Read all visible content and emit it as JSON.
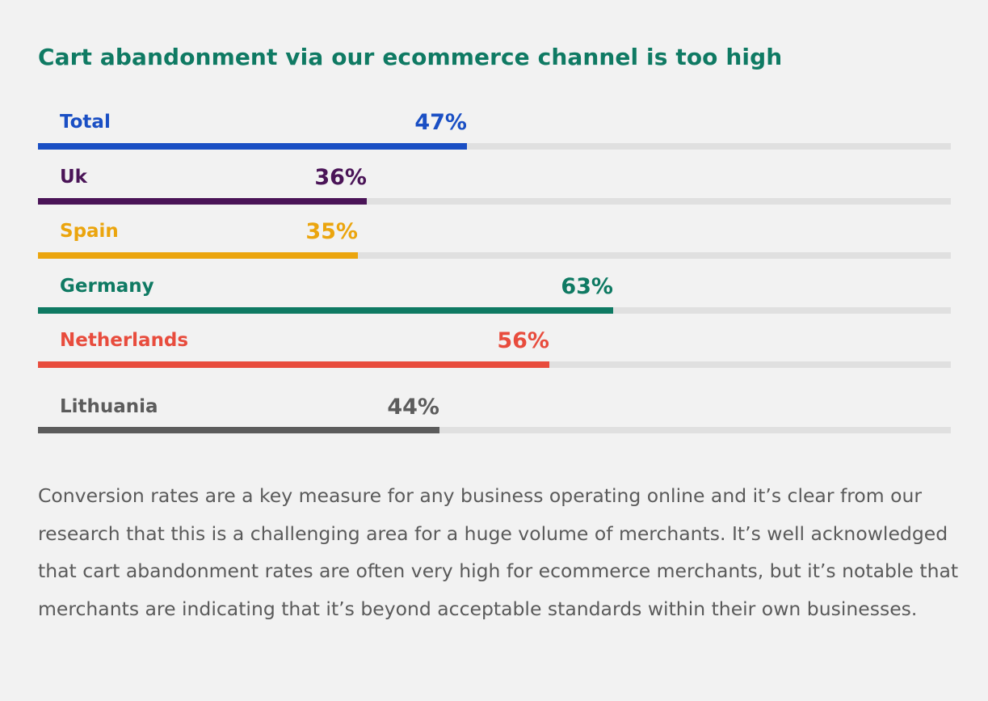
{
  "chart_data": {
    "type": "bar",
    "title": "Cart abandonment via our ecommerce channel is too high",
    "categories": [
      "Total",
      "Uk",
      "Spain",
      "Germany",
      "Netherlands",
      "Lithuania"
    ],
    "values": [
      47,
      36,
      35,
      63,
      56,
      44
    ],
    "value_labels": [
      "47%",
      "36%",
      "35%",
      "63%",
      "56%",
      "44%"
    ],
    "colors": [
      "#1a4fc4",
      "#4a1457",
      "#eba50e",
      "#0f7a63",
      "#e84c3d",
      "#5c5c5c"
    ],
    "track_color": "#e0e0e0",
    "ylim": [
      0,
      100
    ],
    "orientation": "horizontal",
    "grid": false,
    "legend": "none"
  },
  "body_text": "Conversion rates are a key measure for any business operating online and it’s clear from our research that this is a challenging area for a huge volume of merchants. It’s well acknowledged that cart abandonment rates are often very high for ecommerce merchants, but it’s notable that merchants are indicating that it’s beyond acceptable standards within their own businesses."
}
